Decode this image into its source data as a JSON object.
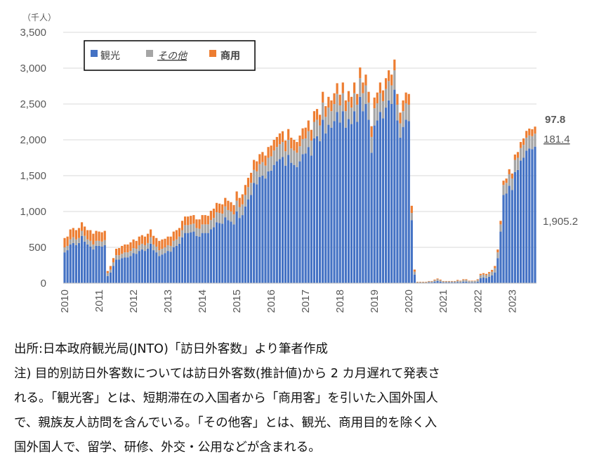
{
  "chart_data": {
    "type": "bar",
    "stacked": true,
    "unit_label": "（千人）",
    "ylim": [
      0,
      3500
    ],
    "yticks": [
      "0",
      "500",
      "1,000",
      "1,500",
      "2,000",
      "2,500",
      "3,000",
      "3,500"
    ],
    "x_ticks": [
      "2010",
      "2011",
      "2012",
      "2013",
      "2014",
      "2015",
      "2016",
      "2017",
      "2018",
      "2019",
      "2020",
      "2021",
      "2022",
      "2023"
    ],
    "x_start": "2010-01",
    "grid": true,
    "legend_position": "top-left",
    "series": [
      {
        "name": "観光",
        "color": "#4472C4",
        "values": [
          430,
          460,
          540,
          560,
          530,
          560,
          660,
          580,
          540,
          510,
          470,
          520,
          520,
          510,
          530,
          100,
          150,
          240,
          330,
          330,
          350,
          360,
          360,
          380,
          420,
          410,
          450,
          470,
          450,
          480,
          550,
          460,
          430,
          380,
          400,
          420,
          450,
          440,
          500,
          520,
          550,
          640,
          700,
          700,
          710,
          720,
          660,
          650,
          700,
          700,
          700,
          750,
          780,
          850,
          840,
          830,
          920,
          880,
          860,
          820,
          1000,
          910,
          950,
          1070,
          1170,
          1230,
          1400,
          1380,
          1480,
          1500,
          1460,
          1560,
          1570,
          1650,
          1700,
          1730,
          1760,
          1640,
          1790,
          1680,
          1650,
          1620,
          1700,
          1800,
          1810,
          1900,
          1780,
          2020,
          2050,
          1980,
          2280,
          2090,
          2210,
          2170,
          2260,
          2390,
          2240,
          2400,
          2170,
          2290,
          2220,
          2400,
          2250,
          2600,
          2400,
          2500,
          2280,
          1820,
          2200,
          2270,
          2390,
          2300,
          2450,
          2550,
          2500,
          2700,
          2270,
          2030,
          2180,
          2280,
          2260,
          880,
          120,
          5,
          5,
          5,
          5,
          10,
          10,
          20,
          30,
          20,
          10,
          10,
          10,
          10,
          10,
          15,
          10,
          20,
          20,
          10,
          10,
          10,
          20,
          70,
          80,
          70,
          90,
          110,
          150,
          350,
          720,
          1230,
          1250,
          1360,
          1300,
          1550,
          1580,
          1710,
          1750,
          1850,
          1880,
          1870,
          1905.2
        ]
      },
      {
        "name": "その他",
        "color": "#A5A5A5",
        "values": [
          70,
          60,
          70,
          80,
          80,
          70,
          70,
          80,
          70,
          80,
          70,
          70,
          70,
          70,
          70,
          40,
          40,
          50,
          60,
          60,
          60,
          70,
          70,
          70,
          70,
          70,
          80,
          80,
          80,
          80,
          90,
          80,
          80,
          80,
          80,
          80,
          80,
          80,
          90,
          90,
          100,
          100,
          110,
          110,
          110,
          110,
          110,
          110,
          120,
          120,
          120,
          130,
          130,
          140,
          140,
          140,
          150,
          140,
          140,
          140,
          150,
          150,
          150,
          160,
          170,
          170,
          180,
          180,
          180,
          190,
          180,
          190,
          200,
          200,
          200,
          210,
          210,
          200,
          210,
          200,
          200,
          200,
          210,
          210,
          210,
          220,
          210,
          230,
          230,
          220,
          240,
          230,
          240,
          230,
          240,
          250,
          240,
          250,
          230,
          240,
          230,
          250,
          240,
          260,
          250,
          260,
          240,
          220,
          240,
          240,
          260,
          240,
          260,
          270,
          260,
          270,
          220,
          200,
          220,
          230,
          230,
          100,
          40,
          10,
          10,
          10,
          10,
          15,
          15,
          20,
          25,
          20,
          15,
          15,
          15,
          15,
          15,
          20,
          20,
          25,
          25,
          20,
          20,
          20,
          25,
          40,
          40,
          40,
          45,
          50,
          60,
          80,
          100,
          140,
          150,
          160,
          160,
          170,
          170,
          175,
          180,
          180,
          182,
          181,
          181.4
        ]
      },
      {
        "name": "商用",
        "color": "#ED7D31",
        "values": [
          130,
          130,
          140,
          130,
          130,
          140,
          120,
          130,
          130,
          150,
          150,
          140,
          130,
          130,
          130,
          30,
          50,
          60,
          90,
          100,
          110,
          110,
          110,
          120,
          120,
          110,
          120,
          120,
          120,
          130,
          110,
          120,
          120,
          130,
          130,
          120,
          120,
          130,
          130,
          130,
          120,
          130,
          120,
          120,
          120,
          120,
          120,
          130,
          130,
          130,
          120,
          130,
          130,
          130,
          130,
          130,
          120,
          130,
          130,
          130,
          130,
          130,
          140,
          140,
          130,
          140,
          140,
          140,
          140,
          140,
          140,
          150,
          150,
          150,
          140,
          150,
          150,
          150,
          150,
          150,
          150,
          150,
          150,
          150,
          150,
          150,
          150,
          150,
          150,
          150,
          150,
          150,
          150,
          150,
          150,
          150,
          150,
          150,
          150,
          150,
          150,
          150,
          150,
          150,
          150,
          150,
          150,
          150,
          150,
          150,
          150,
          150,
          150,
          150,
          150,
          150,
          150,
          150,
          150,
          150,
          150,
          100,
          30,
          5,
          5,
          5,
          5,
          5,
          5,
          10,
          10,
          10,
          5,
          5,
          5,
          5,
          5,
          10,
          5,
          10,
          10,
          5,
          5,
          5,
          10,
          20,
          20,
          20,
          20,
          25,
          30,
          40,
          50,
          60,
          60,
          70,
          70,
          75,
          80,
          85,
          90,
          95,
          95,
          97,
          97.8
        ]
      }
    ],
    "end_labels": [
      {
        "series": "商用",
        "text": "97.8"
      },
      {
        "series": "その他",
        "text": "181.4"
      },
      {
        "series": "観光",
        "text": "1,905.2"
      }
    ]
  },
  "notes": {
    "source": "出所:日本政府観光局(JNTO)「訪日外客数」より筆者作成",
    "lines": [
      "注) 目的別訪日外客数については訪日外客数(推計値)から 2 カ月遅れて発表さ",
      "れる。「観光客」とは、短期滞在の入国者から「商用客」を引いた入国外国人",
      "で、親族友人訪問を含んでいる。「その他客」とは、観光、商用目的を除く入",
      "国外国人で、留学、研修、外交・公用などが含まれる。"
    ]
  }
}
